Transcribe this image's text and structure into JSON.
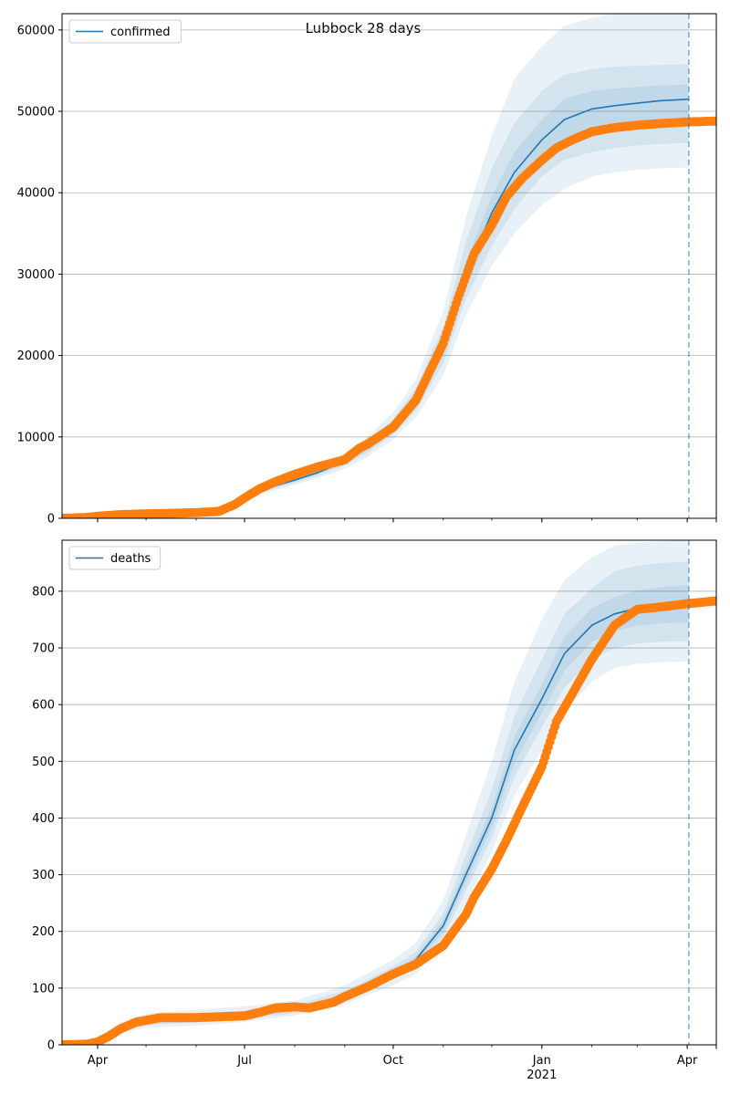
{
  "figure": {
    "title": "Lubbock 28 days"
  },
  "colors": {
    "model_line": "#1f77b4",
    "observed": "#ff7f0e",
    "band": "#1f77b4",
    "grid": "#b0b0b0",
    "forecast_marker": "#1f77b4"
  },
  "x_axis": {
    "date_range": [
      "2020-03-10",
      "2021-04-19"
    ],
    "ticks": [
      {
        "date": "2020-04-01",
        "label": "Apr",
        "sublabel": ""
      },
      {
        "date": "2020-07-01",
        "label": "Jul",
        "sublabel": ""
      },
      {
        "date": "2020-10-01",
        "label": "Oct",
        "sublabel": ""
      },
      {
        "date": "2021-01-01",
        "label": "Jan",
        "sublabel": "2021"
      },
      {
        "date": "2021-04-01",
        "label": "Apr",
        "sublabel": ""
      }
    ],
    "forecast_start": "2021-04-02"
  },
  "chart_data": [
    {
      "type": "line",
      "legend": [
        "confirmed"
      ],
      "legend_position": "upper-left",
      "grid": "horizontal",
      "ylim": [
        0,
        62000
      ],
      "yticks": [
        0,
        10000,
        20000,
        30000,
        40000,
        50000,
        60000
      ],
      "series": [
        {
          "name": "confirmed",
          "role": "model",
          "x": [
            "2020-03-10",
            "2020-04-01",
            "2020-05-01",
            "2020-06-01",
            "2020-06-20",
            "2020-07-01",
            "2020-07-15",
            "2020-08-01",
            "2020-08-15",
            "2020-09-01",
            "2020-09-15",
            "2020-10-01",
            "2020-10-15",
            "2020-11-01",
            "2020-11-15",
            "2020-12-01",
            "2020-12-15",
            "2021-01-01",
            "2021-01-15",
            "2021-02-01",
            "2021-02-15",
            "2021-03-01",
            "2021-03-15",
            "2021-04-02"
          ],
          "values": [
            0,
            300,
            600,
            700,
            1200,
            2500,
            3700,
            4700,
            5600,
            7000,
            8700,
            11200,
            14500,
            21000,
            30000,
            37500,
            42500,
            46500,
            49000,
            50300,
            50700,
            51000,
            51300,
            51500
          ],
          "bands": [
            {
              "level": "outer",
              "lower": [
                0,
                250,
                500,
                600,
                1000,
                2200,
                3200,
                4100,
                4900,
                6100,
                7500,
                9700,
                12400,
                17500,
                25000,
                31000,
                35000,
                38500,
                40500,
                42000,
                42500,
                42800,
                43000,
                43100
              ],
              "upper": [
                0,
                350,
                700,
                800,
                1400,
                2800,
                4300,
                5400,
                6400,
                8000,
                10000,
                13000,
                17000,
                25500,
                37000,
                47000,
                54000,
                58000,
                60500,
                61500,
                62000,
                62000,
                62000,
                62000
              ]
            },
            {
              "level": "middle",
              "lower": [
                0,
                270,
                550,
                650,
                1100,
                2300,
                3400,
                4350,
                5200,
                6500,
                8000,
                10300,
                13200,
                19000,
                27000,
                33500,
                38000,
                42000,
                44000,
                45000,
                45500,
                45800,
                46000,
                46100
              ],
              "upper": [
                0,
                330,
                650,
                750,
                1300,
                2700,
                4000,
                5100,
                6000,
                7500,
                9400,
                12200,
                16000,
                23500,
                34000,
                43000,
                48500,
                52500,
                54500,
                55200,
                55500,
                55600,
                55700,
                55800
              ]
            },
            {
              "level": "inner",
              "lower": [
                0,
                285,
                575,
                675,
                1150,
                2400,
                3550,
                4520,
                5400,
                6750,
                8350,
                10750,
                13850,
                20000,
                28500,
                35500,
                40200,
                44000,
                46200,
                47500,
                47800,
                48100,
                48300,
                48400
              ],
              "upper": [
                0,
                315,
                625,
                725,
                1250,
                2600,
                3850,
                4880,
                5800,
                7250,
                9050,
                11650,
                15150,
                22000,
                31500,
                39500,
                45000,
                49000,
                51500,
                52500,
                52800,
                53000,
                53200,
                53300
              ]
            }
          ]
        },
        {
          "name": "",
          "role": "observed",
          "x": [
            "2020-03-10",
            "2020-03-25",
            "2020-04-01",
            "2020-04-15",
            "2020-05-01",
            "2020-05-15",
            "2020-06-01",
            "2020-06-15",
            "2020-06-25",
            "2020-07-01",
            "2020-07-10",
            "2020-07-20",
            "2020-08-01",
            "2020-08-15",
            "2020-09-01",
            "2020-09-10",
            "2020-09-15",
            "2020-10-01",
            "2020-10-15",
            "2020-11-01",
            "2020-11-10",
            "2020-11-20",
            "2020-12-01",
            "2020-12-10",
            "2020-12-20",
            "2021-01-01",
            "2021-01-10",
            "2021-01-20",
            "2021-02-01",
            "2021-02-15",
            "2021-03-01",
            "2021-03-15",
            "2021-04-01",
            "2021-04-19"
          ],
          "values": [
            0,
            100,
            250,
            450,
            550,
            600,
            700,
            850,
            1700,
            2500,
            3600,
            4500,
            5400,
            6300,
            7200,
            8600,
            9100,
            11200,
            14500,
            21500,
            27000,
            32500,
            36000,
            39500,
            41800,
            44000,
            45500,
            46500,
            47500,
            48000,
            48300,
            48500,
            48700,
            48800
          ]
        }
      ]
    },
    {
      "type": "line",
      "legend": [
        "deaths"
      ],
      "legend_position": "upper-left",
      "grid": "horizontal",
      "ylim": [
        0,
        890
      ],
      "yticks": [
        0,
        100,
        200,
        300,
        400,
        500,
        600,
        700,
        800
      ],
      "series": [
        {
          "name": "deaths",
          "role": "model",
          "x": [
            "2020-03-10",
            "2020-03-25",
            "2020-04-05",
            "2020-04-15",
            "2020-05-01",
            "2020-06-01",
            "2020-07-01",
            "2020-08-01",
            "2020-09-01",
            "2020-10-01",
            "2020-10-15",
            "2020-11-01",
            "2020-11-15",
            "2020-12-01",
            "2020-12-15",
            "2021-01-01",
            "2021-01-15",
            "2021-02-01",
            "2021-02-15",
            "2021-03-01",
            "2021-03-15",
            "2021-04-02"
          ],
          "values": [
            0,
            3,
            15,
            30,
            42,
            48,
            52,
            62,
            85,
            125,
            150,
            210,
            300,
            400,
            520,
            610,
            690,
            740,
            760,
            770,
            775,
            778
          ],
          "bands": [
            {
              "level": "outer",
              "lower": [
                0,
                1,
                10,
                20,
                30,
                34,
                40,
                52,
                72,
                105,
                125,
                175,
                250,
                340,
                440,
                520,
                590,
                640,
                665,
                672,
                675,
                676
              ],
              "upper": [
                0,
                5,
                20,
                40,
                55,
                62,
                68,
                78,
                105,
                150,
                180,
                255,
                370,
                500,
                640,
                750,
                820,
                860,
                880,
                886,
                888,
                890
              ]
            },
            {
              "level": "middle",
              "lower": [
                0,
                2,
                12,
                25,
                35,
                40,
                45,
                56,
                78,
                115,
                138,
                190,
                272,
                365,
                472,
                560,
                630,
                680,
                700,
                708,
                711,
                712
              ],
              "upper": [
                0,
                4,
                18,
                35,
                50,
                56,
                60,
                70,
                95,
                138,
                164,
                232,
                335,
                450,
                580,
                680,
                760,
                805,
                835,
                845,
                850,
                852
              ]
            },
            {
              "level": "inner",
              "lower": [
                0,
                2,
                13,
                27,
                38,
                44,
                48,
                59,
                81,
                120,
                144,
                200,
                286,
                382,
                496,
                585,
                660,
                710,
                730,
                739,
                743,
                745
              ],
              "upper": [
                0,
                4,
                17,
                33,
                46,
                52,
                56,
                65,
                89,
                130,
                156,
                220,
                314,
                418,
                544,
                635,
                720,
                770,
                790,
                801,
                807,
                811
              ]
            }
          ]
        },
        {
          "name": "",
          "role": "observed",
          "x": [
            "2020-03-10",
            "2020-03-25",
            "2020-04-01",
            "2020-04-08",
            "2020-04-15",
            "2020-04-25",
            "2020-05-10",
            "2020-06-01",
            "2020-06-20",
            "2020-07-01",
            "2020-07-10",
            "2020-07-20",
            "2020-08-01",
            "2020-08-10",
            "2020-08-25",
            "2020-09-01",
            "2020-09-15",
            "2020-10-01",
            "2020-10-15",
            "2020-10-20",
            "2020-11-01",
            "2020-11-15",
            "2020-11-20",
            "2020-12-01",
            "2020-12-10",
            "2020-12-20",
            "2021-01-01",
            "2021-01-10",
            "2021-01-20",
            "2021-02-01",
            "2021-02-15",
            "2021-03-01",
            "2021-03-15",
            "2021-04-01",
            "2021-04-19"
          ],
          "values": [
            0,
            1,
            5,
            15,
            28,
            40,
            48,
            48,
            50,
            51,
            57,
            65,
            67,
            65,
            75,
            85,
            102,
            125,
            142,
            152,
            175,
            230,
            260,
            310,
            360,
            420,
            490,
            570,
            620,
            680,
            740,
            768,
            772,
            778,
            783
          ]
        }
      ]
    }
  ]
}
